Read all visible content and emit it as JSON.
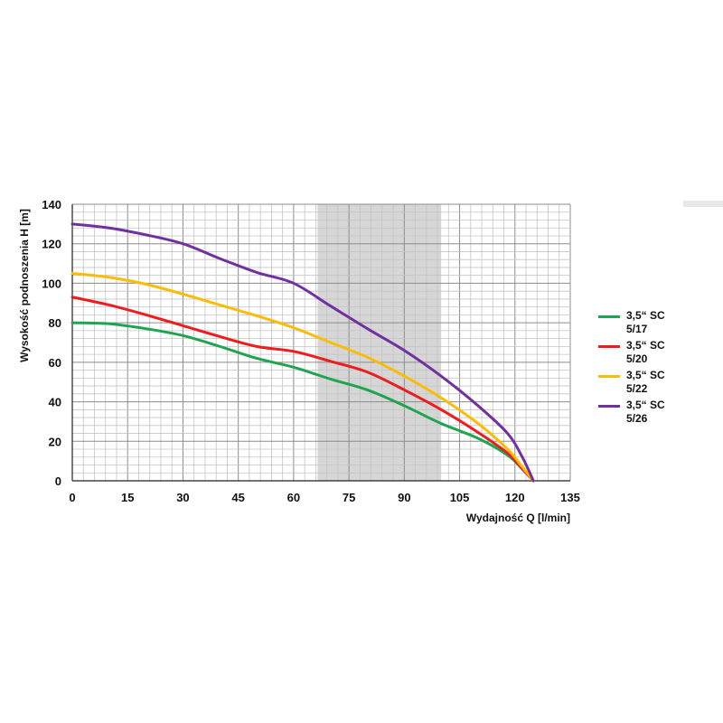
{
  "chart_data": {
    "type": "line",
    "title": "",
    "xlabel": "Wydajność Q [l/min]",
    "ylabel": "Wysokość podnoszenia H [m]",
    "xlim": [
      0,
      135
    ],
    "ylim": [
      0,
      140
    ],
    "xticks": [
      0,
      15,
      30,
      45,
      60,
      75,
      90,
      105,
      120,
      135
    ],
    "yticks": [
      0,
      20,
      40,
      60,
      80,
      100,
      120,
      140
    ],
    "grid": true,
    "shaded_range": [
      66.5,
      100
    ],
    "legend_position": "right",
    "series": [
      {
        "name": "3,5“ SC 5/17",
        "color": "#1fa54f",
        "points": [
          [
            0,
            80
          ],
          [
            10,
            79.5
          ],
          [
            20,
            77
          ],
          [
            30,
            73.5
          ],
          [
            40,
            68
          ],
          [
            50,
            62
          ],
          [
            60,
            57.5
          ],
          [
            70,
            51.5
          ],
          [
            80,
            46
          ],
          [
            90,
            38
          ],
          [
            100,
            29
          ],
          [
            110,
            21.5
          ],
          [
            118,
            13
          ],
          [
            122,
            6
          ],
          [
            125,
            0
          ]
        ]
      },
      {
        "name": "3,5“ SC 5/20",
        "color": "#ee1c1c",
        "points": [
          [
            0,
            93
          ],
          [
            10,
            89
          ],
          [
            20,
            84
          ],
          [
            30,
            78.5
          ],
          [
            40,
            73
          ],
          [
            50,
            68
          ],
          [
            60,
            65.5
          ],
          [
            70,
            60.5
          ],
          [
            80,
            55
          ],
          [
            90,
            46
          ],
          [
            100,
            36
          ],
          [
            110,
            24.5
          ],
          [
            118,
            14
          ],
          [
            122,
            6
          ],
          [
            125,
            0
          ]
        ]
      },
      {
        "name": "3,5“ SC 5/22",
        "color": "#fbbc05",
        "points": [
          [
            0,
            105
          ],
          [
            10,
            103
          ],
          [
            20,
            99.5
          ],
          [
            30,
            94.5
          ],
          [
            40,
            89
          ],
          [
            50,
            83.5
          ],
          [
            60,
            77.5
          ],
          [
            70,
            70
          ],
          [
            80,
            62.5
          ],
          [
            90,
            53
          ],
          [
            100,
            42
          ],
          [
            110,
            29
          ],
          [
            118,
            16
          ],
          [
            122,
            7
          ],
          [
            125,
            0
          ]
        ]
      },
      {
        "name": "3,5“ SC 5/26",
        "color": "#7030a0",
        "points": [
          [
            0,
            130
          ],
          [
            10,
            128
          ],
          [
            20,
            124.5
          ],
          [
            30,
            120
          ],
          [
            40,
            112.5
          ],
          [
            50,
            105.5
          ],
          [
            60,
            100
          ],
          [
            70,
            88.5
          ],
          [
            80,
            77
          ],
          [
            90,
            66
          ],
          [
            100,
            53
          ],
          [
            110,
            38
          ],
          [
            118,
            24
          ],
          [
            122,
            12
          ],
          [
            125,
            0
          ]
        ]
      }
    ]
  }
}
